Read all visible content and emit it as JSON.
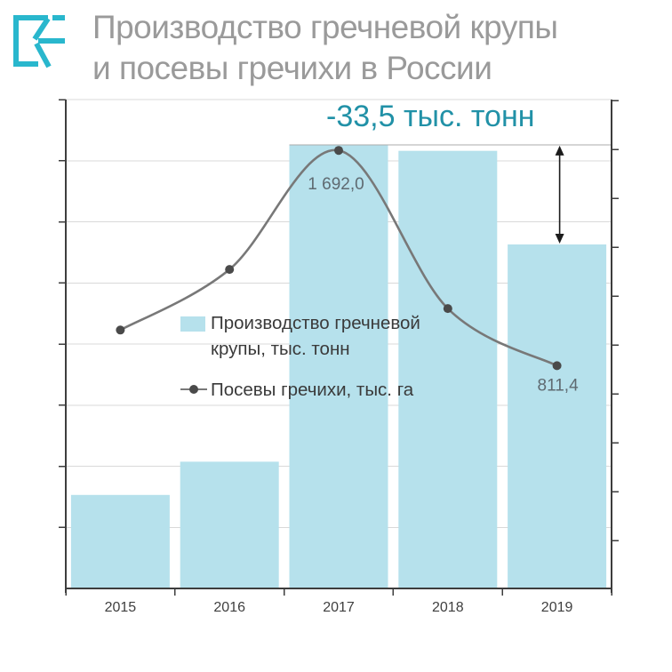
{
  "header": {
    "title_line1": "Производство гречневой крупы",
    "title_line2": "и посевы гречихи в России",
    "logo": "RE-monogram"
  },
  "annotation": {
    "text": "-33,5 тыс. тонн"
  },
  "legend": {
    "items": [
      {
        "label": "Производство гречневой крупы, тыс. тонн",
        "marker": "bar-swatch"
      },
      {
        "label": "Посевы гречихи, тыс. га",
        "marker": "line-dot"
      }
    ]
  },
  "colors": {
    "bar_fill": "#b6e1ec",
    "line_gray": "#787878",
    "dot_gray": "#4a4a4a",
    "accent_teal": "#2191a7",
    "logo_teal": "#29b7cd",
    "title_gray": "#9a9a9a",
    "grid_gray": "#d9d9d9",
    "axis_dark": "#3d3d3d",
    "ref_line_gray": "#ababab",
    "point_label_gray": "#5f6a71",
    "year_label_gray": "#3f3f3f"
  },
  "chart_data": {
    "type": "combo",
    "categories": [
      "2015",
      "2016",
      "2017",
      "2018",
      "2019"
    ],
    "grid": "horizontal",
    "legend_position": "inside-center-left",
    "series": [
      {
        "name": "Производство гречневой крупы, тыс. тонн",
        "type": "bar",
        "unit": "тыс. тонн",
        "axis": "left",
        "values": [
          364,
          375,
          480,
          478,
          447
        ],
        "estimated": true,
        "ylim": [
          333,
          495
        ]
      },
      {
        "name": "Посевы гречихи, тыс. га",
        "type": "line",
        "unit": "тыс. га",
        "axis": "right",
        "values": [
          957,
          1205,
          1692.0,
          1045,
          811.4
        ],
        "ylim": [
          -100,
          1900
        ],
        "point_labels": [
          {
            "index": 2,
            "text": "1 692,0"
          },
          {
            "index": 4,
            "text": "811,4"
          }
        ]
      }
    ],
    "annotations": [
      {
        "type": "delta-arrow",
        "text": "-33,5 тыс. тонн",
        "series": "bar",
        "from_value": 480,
        "to_value": 447
      }
    ]
  }
}
